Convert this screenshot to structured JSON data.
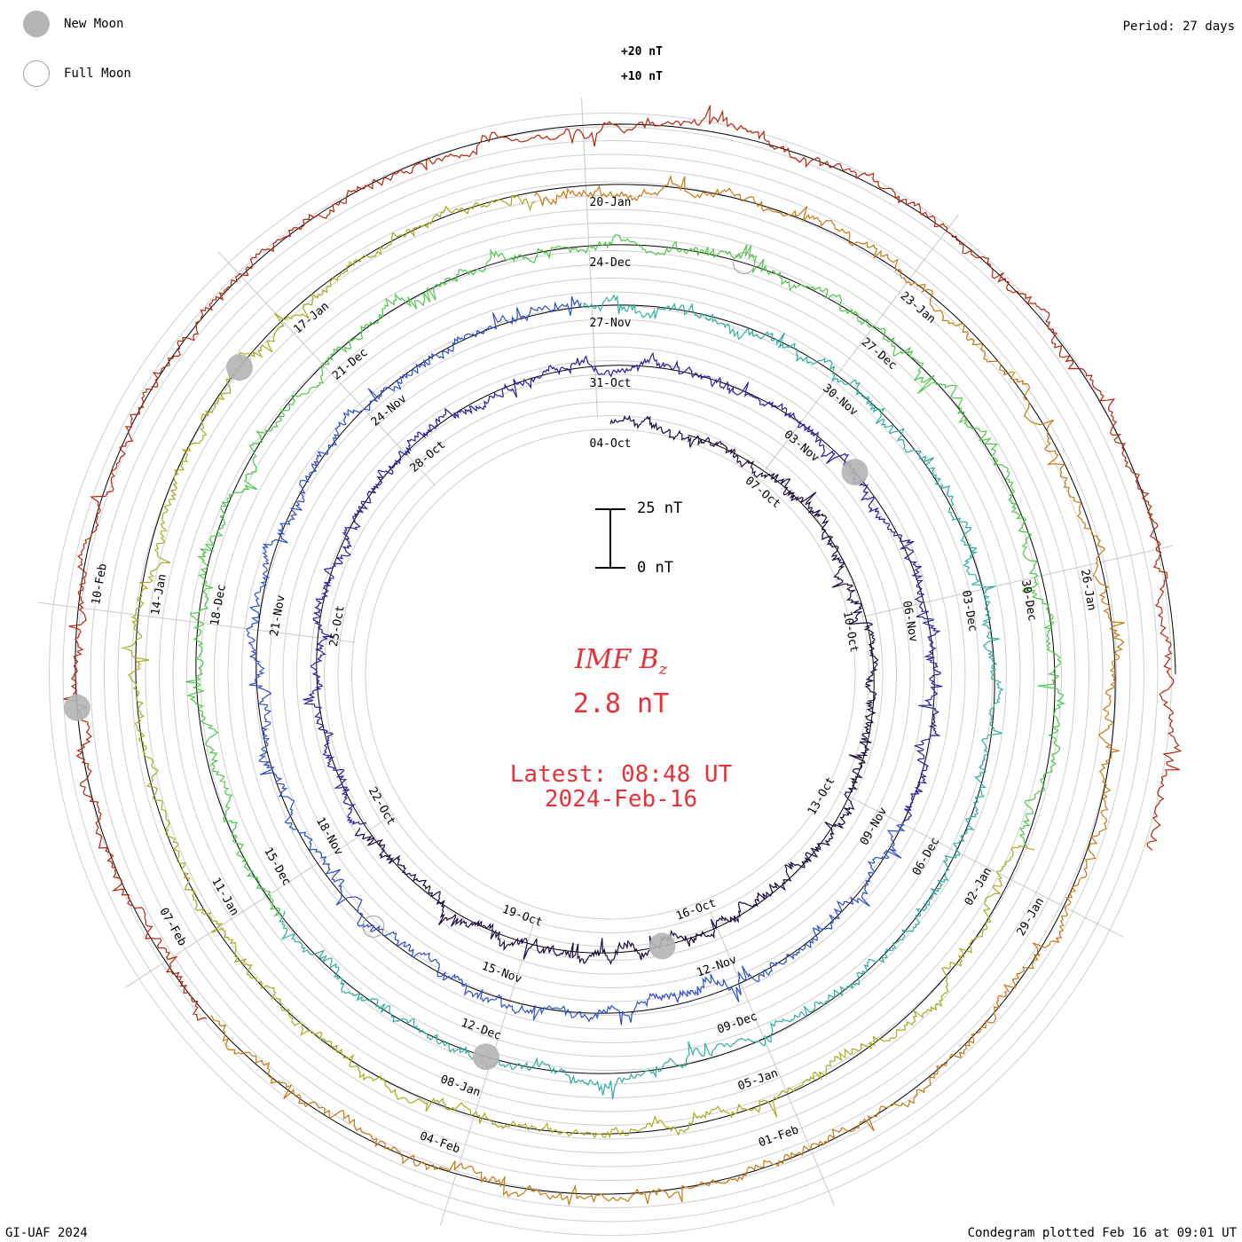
{
  "header": {
    "legend": [
      {
        "label": "New Moon",
        "icon": "new-moon-icon"
      },
      {
        "label": "Full Moon",
        "icon": "full-moon-icon"
      }
    ],
    "period": "Period: 27 days"
  },
  "footer": {
    "left": "GI-UAF 2024",
    "right": "Condegram plotted Feb 16 at 09:01 UT"
  },
  "center": {
    "title_main": "IMF B",
    "title_sub": "z",
    "value": "2.8 nT",
    "latest_time": "Latest: 08:48 UT",
    "latest_date": "2024-Feb-16"
  },
  "chart_data": {
    "type": "line",
    "form": "condegram spiral",
    "period_days": 27,
    "scale": {
      "top_label": "25 nT",
      "bottom_label": "0 nT"
    },
    "outer_ring_labels": [
      "+20 nT",
      "+10 nT"
    ],
    "colors": [
      "#1c0a3c",
      "#2a1f9c",
      "#2f4fc4",
      "#2fae9e",
      "#4ec64a",
      "#a8ab1f",
      "#c27a14",
      "#b3270f"
    ],
    "series": [
      {
        "ticks": [
          "04-Oct",
          "07-Oct",
          "10-Oct",
          "13-Oct",
          "16-Oct",
          "19-Oct",
          "22-Oct",
          "25-Oct",
          "28-Oct"
        ]
      },
      {
        "ticks": [
          "31-Oct",
          "03-Nov",
          "06-Nov",
          "09-Nov",
          "12-Nov",
          "15-Nov",
          "18-Nov",
          "21-Nov",
          "24-Nov"
        ]
      },
      {
        "ticks": [
          "27-Nov",
          "30-Nov",
          "03-Dec",
          "06-Dec",
          "09-Dec",
          "12-Dec",
          "15-Dec",
          "18-Dec",
          "21-Dec"
        ]
      },
      {
        "ticks": [
          "24-Dec",
          "27-Dec",
          "30-Dec",
          "02-Jan",
          "05-Jan",
          "08-Jan",
          "11-Jan",
          "14-Jan",
          "17-Jan"
        ]
      },
      {
        "ticks": [
          "20-Jan",
          "23-Jan",
          "26-Jan",
          "29-Jan",
          "01-Feb",
          "04-Feb",
          "07-Feb",
          "10-Feb"
        ]
      }
    ]
  }
}
